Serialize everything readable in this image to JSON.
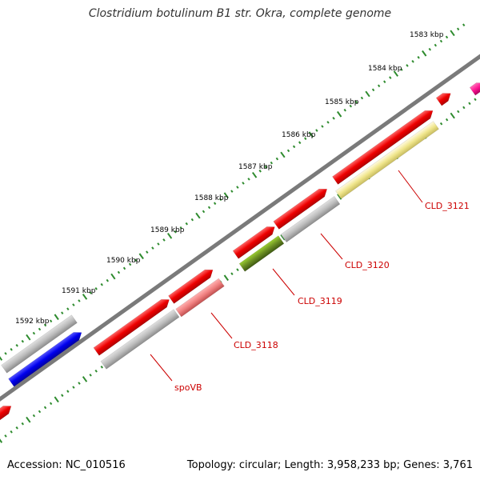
{
  "title": "Clostridium botulinum B1 str. Okra, complete genome",
  "footer": {
    "accession": "Accession: NC_010516",
    "summary": "Topology: circular; Length: 3,958,233 bp; Genes: 3,761"
  },
  "ruler_labels": [
    "1583 kbp",
    "1584 kbp",
    "1585 kbp",
    "1586 kbp",
    "1587 kbp",
    "1588 kbp",
    "1589 kbp",
    "1590 kbp",
    "1591 kbp",
    "1592 kbp"
  ],
  "gene_labels": [
    "CLD_3121",
    "CLD_3120",
    "CLD_3119",
    "CLD_3118",
    "spoVB"
  ],
  "colors": {
    "backbone": "#7a7a7a",
    "tick": "#2e8b2e",
    "label": "#cc0000",
    "red": "#ee0000",
    "gray": "#b8b8b8",
    "blue": "#0000ee",
    "olive": "#6b8e23",
    "pink": "#f08080",
    "yellow": "#f0e68c",
    "magenta": "#ff1493"
  }
}
